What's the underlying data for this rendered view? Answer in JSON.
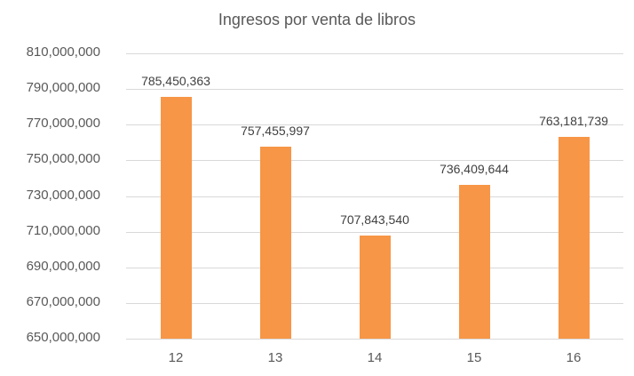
{
  "chart_data": {
    "type": "bar",
    "title": "Ingresos por venta de libros",
    "xlabel": "",
    "ylabel": "",
    "categories": [
      "12",
      "13",
      "14",
      "15",
      "16"
    ],
    "values": [
      785450363,
      757455997,
      707843540,
      736409644,
      763181739
    ],
    "data_labels": [
      "785,450,363",
      "757,455,997",
      "707,843,540",
      "736,409,644",
      "763,181,739"
    ],
    "ylim": [
      650000000,
      810000000
    ],
    "yticks": [
      "810,000,000",
      "790,000,000",
      "770,000,000",
      "750,000,000",
      "730,000,000",
      "710,000,000",
      "690,000,000",
      "670,000,000",
      "650,000,000"
    ],
    "grid": true,
    "legend": "none",
    "bar_color": "#f79646"
  }
}
